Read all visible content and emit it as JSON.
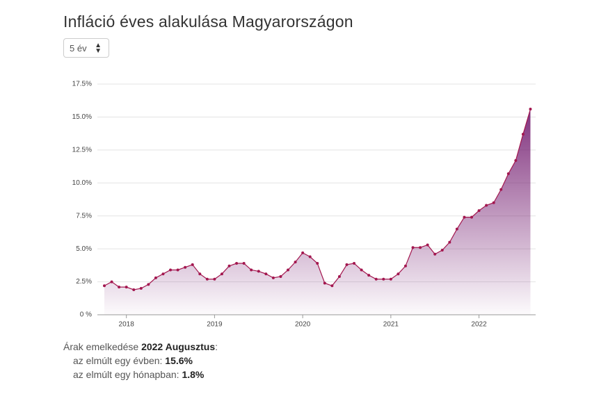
{
  "header": {
    "title": "Infláció éves alakulása Magyarországon",
    "period_select": "5 év"
  },
  "chart_data": {
    "type": "area",
    "categories": [
      null,
      null,
      null,
      "2018",
      null,
      null,
      null,
      null,
      null,
      null,
      null,
      null,
      null,
      null,
      null,
      "2019",
      null,
      null,
      null,
      null,
      null,
      null,
      null,
      null,
      null,
      null,
      null,
      "2020",
      null,
      null,
      null,
      null,
      null,
      null,
      null,
      null,
      null,
      null,
      null,
      "2021",
      null,
      null,
      null,
      null,
      null,
      null,
      null,
      null,
      null,
      null,
      null,
      "2022",
      null,
      null,
      null,
      null,
      null,
      null,
      null
    ],
    "series": [
      {
        "name": "Infláció",
        "color": "#a3174f",
        "values": [
          2.2,
          2.5,
          2.1,
          2.1,
          1.9,
          2.0,
          2.3,
          2.8,
          3.1,
          3.4,
          3.4,
          3.6,
          3.8,
          3.1,
          2.7,
          2.7,
          3.1,
          3.7,
          3.9,
          3.9,
          3.4,
          3.3,
          3.1,
          2.8,
          2.9,
          3.4,
          4.0,
          4.7,
          4.4,
          3.9,
          2.4,
          2.2,
          2.9,
          3.8,
          3.9,
          3.4,
          3.0,
          2.7,
          2.7,
          2.7,
          3.1,
          3.7,
          5.1,
          5.1,
          5.3,
          4.6,
          4.9,
          5.5,
          6.5,
          7.4,
          7.4,
          7.9,
          8.3,
          8.5,
          9.5,
          10.7,
          11.7,
          13.7,
          15.6
        ]
      }
    ],
    "area_color": "#7a2777",
    "ylim": [
      0,
      17.5
    ],
    "yticks": [
      {
        "value": 0,
        "label": "0 %"
      },
      {
        "value": 2.5,
        "label": "2.5%"
      },
      {
        "value": 5,
        "label": "5.0%"
      },
      {
        "value": 7.5,
        "label": "7.5%"
      },
      {
        "value": 10,
        "label": "10.0%"
      },
      {
        "value": 12.5,
        "label": "12.5%"
      },
      {
        "value": 15,
        "label": "15.0%"
      },
      {
        "value": 17.5,
        "label": "17.5%"
      }
    ],
    "grid": true
  },
  "summary": {
    "intro": "Árak emelkedése",
    "period": "2022 Augusztus",
    "colon": ":",
    "year_label": "az elmúlt egy évben:",
    "year_value": "15.6%",
    "month_label": "az elmúlt egy hónapban:",
    "month_value": "1.8%"
  }
}
